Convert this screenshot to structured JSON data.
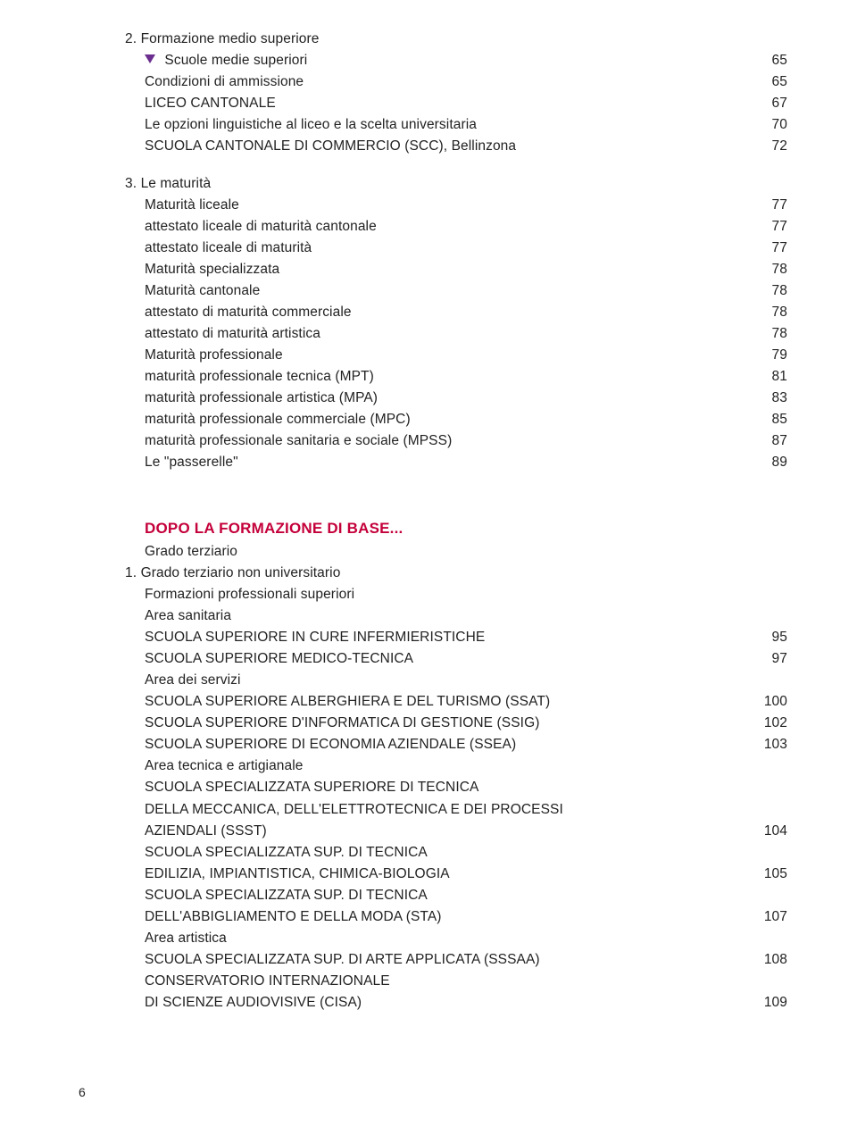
{
  "sections": {
    "formazione_medio": {
      "title_num": "2.",
      "title": "Formazione medio superiore",
      "marker_item": "Scuole medie superiori",
      "marker_page": "65",
      "rows": [
        {
          "label": "Condizioni di ammissione",
          "page": "65"
        },
        {
          "label": "LICEO CANTONALE",
          "page": "67"
        },
        {
          "label": "Le opzioni linguistiche al liceo e la scelta universitaria",
          "page": "70"
        },
        {
          "label": "SCUOLA CANTONALE DI COMMERCIO (SCC), Bellinzona",
          "page": "72"
        }
      ]
    },
    "maturita": {
      "title_num": "3.",
      "title": "Le maturità",
      "rows": [
        {
          "label": "Maturità liceale",
          "page": "77"
        },
        {
          "label": "attestato liceale di maturità cantonale",
          "page": "77"
        },
        {
          "label": "attestato liceale di maturità",
          "page": "77"
        },
        {
          "label": "Maturità specializzata",
          "page": "78"
        },
        {
          "label": "Maturità cantonale",
          "page": "78"
        },
        {
          "label": "attestato di maturità commerciale",
          "page": "78"
        },
        {
          "label": "attestato di maturità artistica",
          "page": "78"
        },
        {
          "label": "Maturità professionale",
          "page": "79"
        },
        {
          "label": "maturità professionale tecnica (MPT)",
          "page": "81"
        },
        {
          "label": "maturità professionale artistica (MPA)",
          "page": "83"
        },
        {
          "label": "maturità professionale commerciale (MPC)",
          "page": "85"
        },
        {
          "label": "maturità professionale sanitaria e sociale (MPSS)",
          "page": "87"
        },
        {
          "label": "Le \"passerelle\"",
          "page": "89"
        }
      ]
    },
    "dopo": {
      "heading": "DOPO LA FORMAZIONE DI BASE...",
      "sub1": "Grado terziario",
      "sub2_num": "1.",
      "sub2": "Grado terziario non universitario",
      "sub3": "Formazioni professionali superiori",
      "groups": [
        {
          "area": "Area sanitaria",
          "rows": [
            {
              "label": "SCUOLA SUPERIORE IN CURE INFERMIERISTICHE",
              "page": "95"
            },
            {
              "label": "SCUOLA SUPERIORE MEDICO-TECNICA",
              "page": "97"
            }
          ]
        },
        {
          "area": "Area dei servizi",
          "rows": [
            {
              "label": "SCUOLA SUPERIORE ALBERGHIERA E DEL TURISMO (SSAT)",
              "page": "100"
            },
            {
              "label": "SCUOLA SUPERIORE D'INFORMATICA DI GESTIONE (SSIG)",
              "page": "102"
            },
            {
              "label": "SCUOLA SUPERIORE DI ECONOMIA AZIENDALE (SSEA)",
              "page": "103"
            }
          ]
        },
        {
          "area": "Area tecnica e artigianale",
          "rows": [
            {
              "label": "SCUOLA SPECIALIZZATA SUPERIORE DI TECNICA\nDELLA MECCANICA, DELL'ELETTROTECNICA E DEI PROCESSI\nAZIENDALI (SSST)",
              "page": "104"
            },
            {
              "label": "SCUOLA SPECIALIZZATA SUP. DI TECNICA\nEDILIZIA, IMPIANTISTICA, CHIMICA-BIOLOGIA",
              "page": "105"
            },
            {
              "label": "SCUOLA SPECIALIZZATA SUP. DI TECNICA\nDELL'ABBIGLIAMENTO E DELLA MODA (STA)",
              "page": "107"
            }
          ]
        },
        {
          "area": "Area artistica",
          "rows": [
            {
              "label": "SCUOLA SPECIALIZZATA SUP. DI ARTE APPLICATA (SSSAA)",
              "page": "108"
            },
            {
              "label": "CONSERVATORIO INTERNAZIONALE\nDI SCIENZE AUDIOVISIVE (CISA)",
              "page": "109"
            }
          ]
        }
      ]
    }
  },
  "footer_page": "6",
  "colors": {
    "accent": "#6b2e8f",
    "heading": "#c4003a",
    "text": "#222222",
    "bg": "#ffffff"
  }
}
